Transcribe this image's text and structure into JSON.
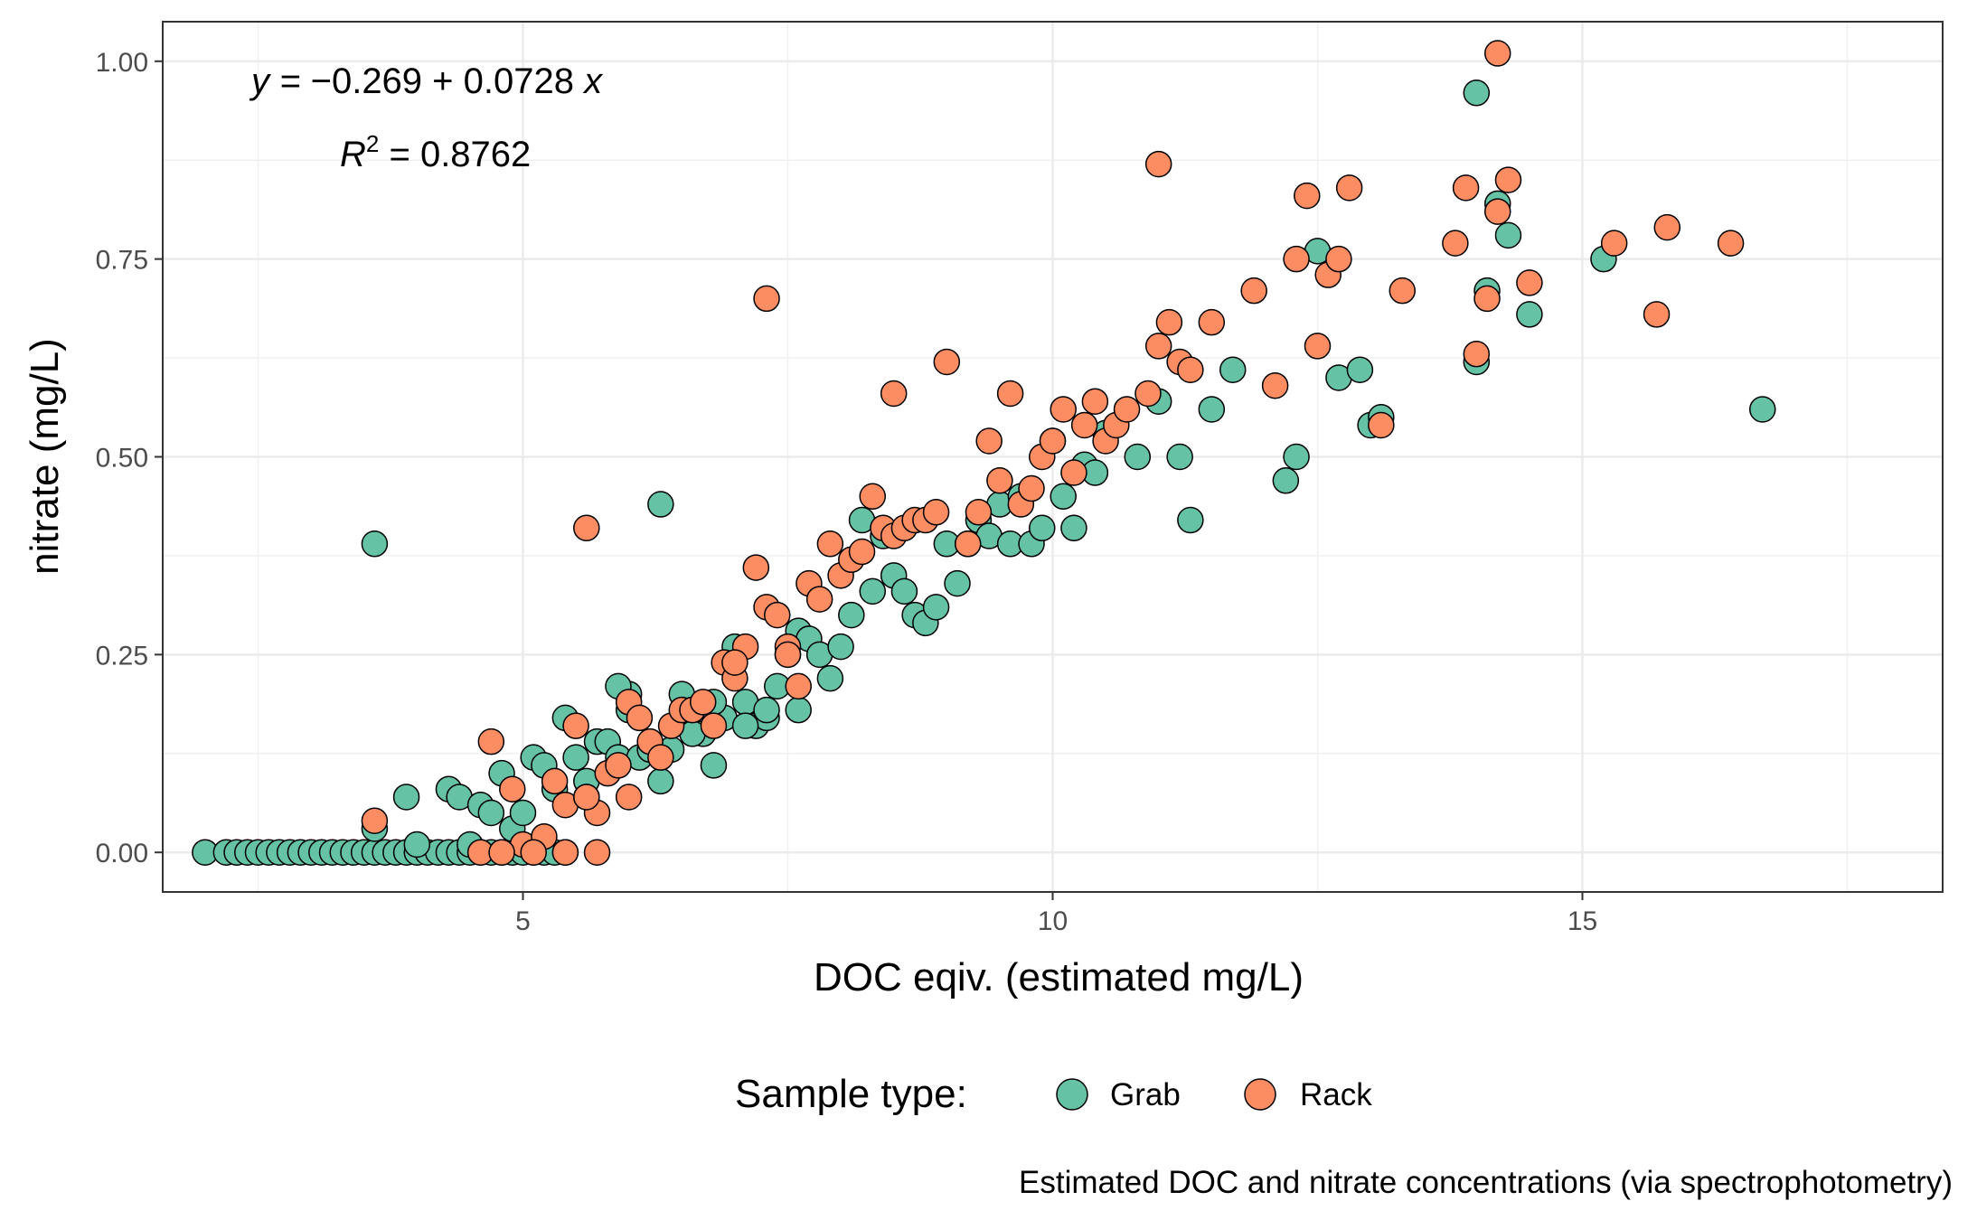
{
  "chart_data": {
    "type": "scatter",
    "xlabel": "DOC eqiv. (estimated mg/L)",
    "ylabel": "nitrate (mg/L)",
    "xlim": [
      1.6,
      18.4
    ],
    "ylim": [
      -0.05,
      1.05
    ],
    "x_ticks": [
      5,
      10,
      15
    ],
    "x_tick_labels": [
      "5",
      "10",
      "15"
    ],
    "y_ticks": [
      0,
      0.25,
      0.5,
      0.75,
      1.0
    ],
    "y_tick_labels": [
      "0.00",
      "0.25",
      "0.50",
      "0.75",
      "1.00"
    ],
    "grid": true,
    "legend_position": "bottom",
    "legend_title": "Sample type:",
    "caption": "Estimated DOC and nitrate concentrations (via spectrophotometry)",
    "annotation": {
      "equation_prefix": "y = ",
      "equation_intercept": "−0.269",
      "equation_op": " + ",
      "equation_slope": "0.0728",
      "equation_var": " x",
      "r2_symbol": "R",
      "r2_exponent": "2",
      "r2_value": " = 0.8762"
    },
    "series": [
      {
        "name": "Grab",
        "color": "#66c2a5",
        "x": [
          2.0,
          2.2,
          2.3,
          2.4,
          2.5,
          2.6,
          2.7,
          2.8,
          2.9,
          3.0,
          3.1,
          3.2,
          3.3,
          3.4,
          3.5,
          3.6,
          3.7,
          3.8,
          3.9,
          4.0,
          4.1,
          4.2,
          4.3,
          4.4,
          4.5,
          4.6,
          4.7,
          4.8,
          4.9,
          5.0,
          5.1,
          5.2,
          5.3,
          5.4,
          3.6,
          3.9,
          4.0,
          4.3,
          4.4,
          4.5,
          4.6,
          4.7,
          4.8,
          4.9,
          5.0,
          5.1,
          5.2,
          5.3,
          5.4,
          5.5,
          5.6,
          5.7,
          5.8,
          5.9,
          6.0,
          6.1,
          6.2,
          6.3,
          6.4,
          6.5,
          6.6,
          6.7,
          6.8,
          6.9,
          7.0,
          7.1,
          7.2,
          7.3,
          7.4,
          7.5,
          7.6,
          7.7,
          7.8,
          7.9,
          8.0,
          8.1,
          8.2,
          8.3,
          8.4,
          8.5,
          8.6,
          8.7,
          8.8,
          8.9,
          9.0,
          9.1,
          9.2,
          9.3,
          9.4,
          9.5,
          9.6,
          9.7,
          9.8,
          9.9,
          10.0,
          10.1,
          10.2,
          10.3,
          10.4,
          10.5,
          10.8,
          11.0,
          11.2,
          11.3,
          11.5,
          11.7,
          12.2,
          12.3,
          12.5,
          12.7,
          12.9,
          13.0,
          13.1,
          14.0,
          14.1,
          14.2,
          14.3,
          14.5,
          15.2,
          16.7,
          14.0,
          5.9,
          6.0,
          6.6,
          6.8,
          7.1,
          7.3,
          7.6,
          6.3,
          3.6
        ],
        "y": [
          0,
          0,
          0,
          0,
          0,
          0,
          0,
          0,
          0,
          0,
          0,
          0,
          0,
          0,
          0,
          0,
          0,
          0,
          0,
          0,
          0,
          0,
          0,
          0,
          0,
          0,
          0,
          0,
          0,
          0,
          0,
          0,
          0,
          0,
          0.03,
          0.07,
          0.01,
          0.08,
          0.07,
          0.01,
          0.06,
          0.05,
          0.1,
          0.03,
          0.05,
          0.12,
          0.11,
          0.08,
          0.17,
          0.12,
          0.09,
          0.14,
          0.14,
          0.12,
          0.2,
          0.12,
          0.13,
          0.09,
          0.13,
          0.2,
          0.18,
          0.15,
          0.11,
          0.17,
          0.26,
          0.19,
          0.16,
          0.17,
          0.21,
          0.25,
          0.28,
          0.27,
          0.25,
          0.22,
          0.26,
          0.3,
          0.42,
          0.33,
          0.4,
          0.35,
          0.33,
          0.3,
          0.29,
          0.31,
          0.39,
          0.34,
          0.39,
          0.42,
          0.4,
          0.44,
          0.39,
          0.45,
          0.39,
          0.41,
          0.52,
          0.45,
          0.41,
          0.49,
          0.48,
          0.53,
          0.5,
          0.57,
          0.5,
          0.42,
          0.56,
          0.61,
          0.47,
          0.5,
          0.76,
          0.6,
          0.61,
          0.54,
          0.55,
          0.62,
          0.71,
          0.82,
          0.78,
          0.68,
          0.75,
          0.56,
          0.96,
          0.21,
          0.18,
          0.15,
          0.19,
          0.16,
          0.18,
          0.18,
          0.44,
          0.39
        ]
      },
      {
        "name": "Rack",
        "color": "#fc8d62",
        "x": [
          3.6,
          4.7,
          4.9,
          5.0,
          5.2,
          5.3,
          5.4,
          5.5,
          5.6,
          5.7,
          5.8,
          5.9,
          6.0,
          6.1,
          6.2,
          6.3,
          6.4,
          6.5,
          6.6,
          6.7,
          6.8,
          6.9,
          7.0,
          7.1,
          7.2,
          7.3,
          7.4,
          7.5,
          7.6,
          7.7,
          7.8,
          7.9,
          8.0,
          8.1,
          8.2,
          8.3,
          8.4,
          8.5,
          8.6,
          8.7,
          8.8,
          8.9,
          9.0,
          9.2,
          9.3,
          9.4,
          9.5,
          9.6,
          9.7,
          9.8,
          9.9,
          10.0,
          10.1,
          10.2,
          10.3,
          10.4,
          10.5,
          10.6,
          10.7,
          10.9,
          11.0,
          11.1,
          11.2,
          11.3,
          11.5,
          11.9,
          12.1,
          12.3,
          12.5,
          12.6,
          12.7,
          12.8,
          13.1,
          13.3,
          13.8,
          13.9,
          14.0,
          14.1,
          14.2,
          14.3,
          14.5,
          15.3,
          15.7,
          15.8,
          16.4,
          11.0,
          14.2,
          12.4,
          7.3,
          5.6,
          8.5,
          4.6,
          4.8,
          5.1,
          5.4,
          5.6,
          5.7,
          6.0,
          7.0,
          7.5
        ],
        "y": [
          0.04,
          0.14,
          0.08,
          0.01,
          0.02,
          0.09,
          0.06,
          0.16,
          0.07,
          0.05,
          0.1,
          0.11,
          0.19,
          0.17,
          0.14,
          0.12,
          0.16,
          0.18,
          0.18,
          0.19,
          0.16,
          0.24,
          0.22,
          0.26,
          0.36,
          0.31,
          0.3,
          0.26,
          0.21,
          0.34,
          0.32,
          0.39,
          0.35,
          0.37,
          0.38,
          0.45,
          0.41,
          0.4,
          0.41,
          0.42,
          0.42,
          0.43,
          0.62,
          0.39,
          0.43,
          0.52,
          0.47,
          0.58,
          0.44,
          0.46,
          0.5,
          0.52,
          0.56,
          0.48,
          0.54,
          0.57,
          0.52,
          0.54,
          0.56,
          0.58,
          0.64,
          0.67,
          0.62,
          0.61,
          0.67,
          0.71,
          0.59,
          0.75,
          0.64,
          0.73,
          0.75,
          0.84,
          0.54,
          0.71,
          0.77,
          0.84,
          0.63,
          0.7,
          0.81,
          0.85,
          0.72,
          0.77,
          0.68,
          0.79,
          0.77,
          0.87,
          1.01,
          0.83,
          0.7,
          0.41,
          0.58,
          0.0,
          0.0,
          0.0,
          0.0,
          0.07,
          0.0,
          0.07,
          0.24,
          0.25
        ]
      }
    ]
  }
}
